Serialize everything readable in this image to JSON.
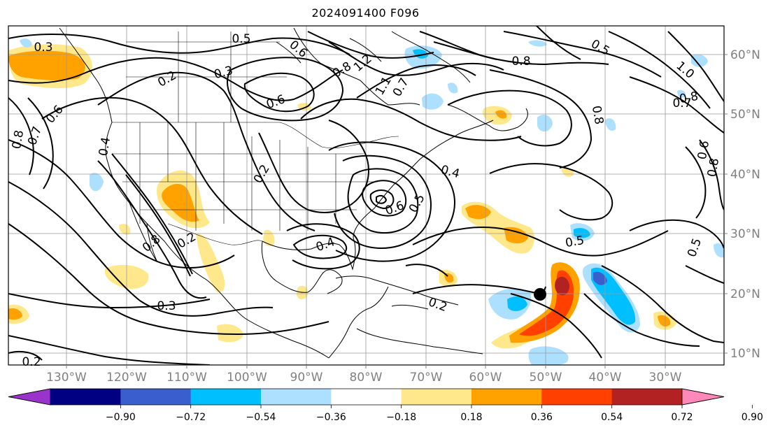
{
  "title": "2024091400 F096",
  "lon_labels": [
    "130°W",
    "120°W",
    "110°W",
    "100°W",
    "90°W",
    "80°W",
    "70°W",
    "60°W",
    "50°W",
    "40°W",
    "30°W"
  ],
  "lat_labels": [
    "60°N",
    "50°N",
    "40°N",
    "30°N",
    "20°N",
    "10°N"
  ],
  "colorbar": {
    "colors": [
      "#9933cc",
      "#000080",
      "#3a5fcd",
      "#00bfff",
      "#addfff",
      "#ffffff",
      "#ffe88c",
      "#ffa200",
      "#ff4000",
      "#b22222",
      "#ff88bb"
    ],
    "ticks": [
      "−0.90",
      "−0.72",
      "−0.54",
      "−0.36",
      "−0.18",
      "0.18",
      "0.36",
      "0.54",
      "0.72",
      "0.90"
    ]
  },
  "contour_labels": [
    {
      "text": "0.3"
    },
    {
      "text": "0.5"
    },
    {
      "text": "0.2"
    },
    {
      "text": "0.3"
    },
    {
      "text": "0.6"
    },
    {
      "text": "0.6"
    },
    {
      "text": "0.7"
    },
    {
      "text": "0.8"
    },
    {
      "text": "0.4"
    },
    {
      "text": "0.2"
    },
    {
      "text": "0.8"
    },
    {
      "text": "0.4"
    },
    {
      "text": "0.2"
    },
    {
      "text": "0.4"
    },
    {
      "text": "0.6"
    },
    {
      "text": "0.5"
    },
    {
      "text": "0.3"
    },
    {
      "text": "0.2"
    },
    {
      "text": "0.2"
    },
    {
      "text": "0.5"
    },
    {
      "text": "0.8"
    },
    {
      "text": "0.5"
    },
    {
      "text": "1.0"
    },
    {
      "text": "0.8"
    },
    {
      "text": "0.7"
    },
    {
      "text": "0.8"
    },
    {
      "text": "0.6"
    },
    {
      "text": "0.8"
    },
    {
      "text": "0.5"
    },
    {
      "text": "1.2"
    },
    {
      "text": "0.8"
    },
    {
      "text": "0.6"
    },
    {
      "text": "1.1"
    },
    {
      "text": "0.7"
    }
  ]
}
